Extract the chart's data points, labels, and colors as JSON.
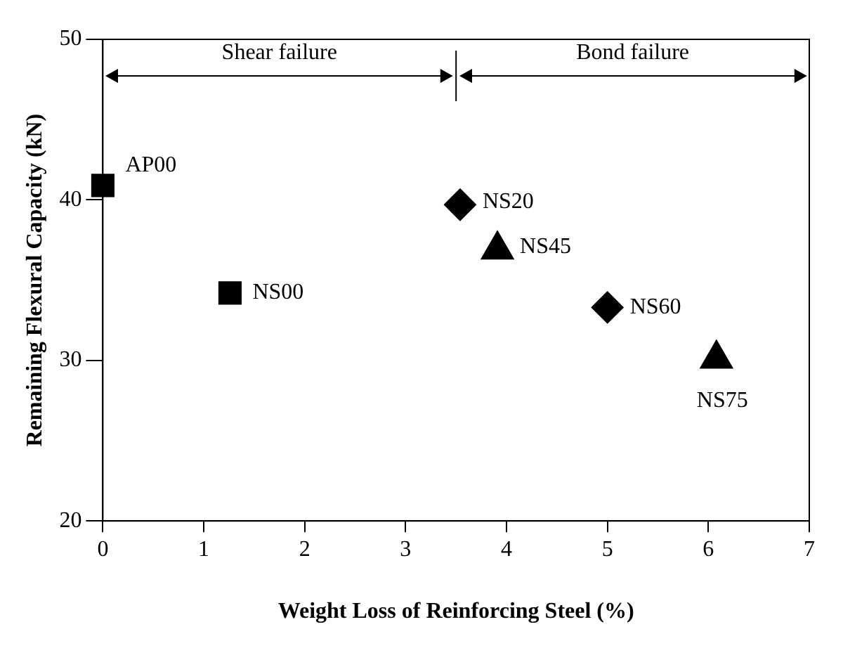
{
  "chart_data": {
    "type": "scatter",
    "xlabel": "Weight Loss of Reinforcing Steel (%)",
    "ylabel": "Remaining Flexural Capacity (kN)",
    "series": [
      {
        "color": "#000000",
        "marker": "square",
        "x": [
          0,
          1.26
        ],
        "values": [
          40.9,
          34.2
        ]
      },
      {
        "color": "#000000",
        "marker": "diamond",
        "x": [
          3.54,
          5.0
        ],
        "values": [
          39.7,
          33.3
        ]
      },
      {
        "color": "#000000",
        "marker": "triangle",
        "x": [
          3.91,
          6.08
        ],
        "values": [
          36.9,
          30.1
        ]
      }
    ],
    "xlim": [
      0,
      7
    ],
    "xticks": [
      0,
      1,
      2,
      3,
      4,
      5,
      6,
      7
    ],
    "ylim": [
      20,
      50
    ],
    "yticks": [
      20,
      30,
      40,
      50
    ],
    "grid": false,
    "legend": false,
    "ref_lines": [
      {
        "axis": "x",
        "value": 3.5
      }
    ],
    "annotations": [
      "Shear failure",
      "Bond failure",
      {
        "text": "AP00",
        "x": 0,
        "y": 40.9
      },
      {
        "text": "NS00",
        "x": 1.26,
        "y": 34.2
      },
      {
        "text": "NS20",
        "x": 3.54,
        "y": 39.7
      },
      {
        "text": "NS45",
        "x": 3.91,
        "y": 36.9
      },
      {
        "text": "NS60",
        "x": 5.0,
        "y": 33.3
      },
      {
        "text": "NS75",
        "x": 6.08,
        "y": 30.1
      }
    ]
  }
}
